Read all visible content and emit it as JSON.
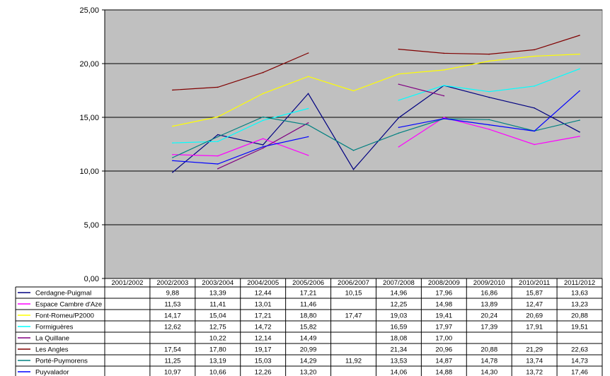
{
  "chart_data": {
    "type": "line",
    "title": "",
    "xlabel": "",
    "ylabel": "",
    "ylim": [
      0,
      25
    ],
    "ytick_labels": [
      "0,00",
      "5,00",
      "10,00",
      "15,00",
      "20,00",
      "25,00"
    ],
    "yticks": [
      0,
      5,
      10,
      15,
      20,
      25
    ],
    "grid": true,
    "legend": "data-table-below",
    "categories": [
      "2001/2002",
      "2002/2003",
      "2003/2004",
      "2004/2005",
      "2005/2006",
      "2006/2007",
      "2007/2008",
      "2008/2009",
      "2009/2010",
      "2010/2011",
      "2011/2012"
    ],
    "series": [
      {
        "name": "Cerdagne-Puigmal",
        "color": "#000080",
        "values": [
          null,
          9.88,
          13.39,
          12.44,
          17.21,
          10.15,
          14.96,
          17.96,
          16.86,
          15.87,
          13.63
        ],
        "labels": [
          "",
          "9,88",
          "13,39",
          "12,44",
          "17,21",
          "10,15",
          "14,96",
          "17,96",
          "16,86",
          "15,87",
          "13,63"
        ]
      },
      {
        "name": "Espace Cambre d'Aze",
        "color": "#ff00ff",
        "values": [
          null,
          11.53,
          11.41,
          13.01,
          11.46,
          null,
          12.25,
          14.98,
          13.89,
          12.47,
          13.23
        ],
        "labels": [
          "",
          "11,53",
          "11,41",
          "13,01",
          "11,46",
          "",
          "12,25",
          "14,98",
          "13,89",
          "12,47",
          "13,23"
        ]
      },
      {
        "name": "Font-Romeu/P2000",
        "color": "#ffff00",
        "values": [
          null,
          14.17,
          15.04,
          17.21,
          18.8,
          17.47,
          19.03,
          19.41,
          20.24,
          20.69,
          20.88
        ],
        "labels": [
          "",
          "14,17",
          "15,04",
          "17,21",
          "18,80",
          "17,47",
          "19,03",
          "19,41",
          "20,24",
          "20,69",
          "20,88"
        ]
      },
      {
        "name": "Formiguères",
        "color": "#00ffff",
        "values": [
          null,
          12.62,
          12.75,
          14.72,
          15.82,
          null,
          16.59,
          17.97,
          17.39,
          17.91,
          19.51
        ],
        "labels": [
          "",
          "12,62",
          "12,75",
          "14,72",
          "15,82",
          "",
          "16,59",
          "17,97",
          "17,39",
          "17,91",
          "19,51"
        ]
      },
      {
        "name": "La Quillane",
        "color": "#800080",
        "values": [
          null,
          null,
          10.22,
          12.14,
          14.49,
          null,
          18.08,
          17.0,
          null,
          null,
          null
        ],
        "labels": [
          "",
          "",
          "10,22",
          "12,14",
          "14,49",
          "",
          "18,08",
          "17,00",
          "",
          "",
          ""
        ]
      },
      {
        "name": "Les Angles",
        "color": "#800000",
        "values": [
          null,
          17.54,
          17.8,
          19.17,
          20.99,
          null,
          21.34,
          20.96,
          20.88,
          21.29,
          22.63
        ],
        "labels": [
          "",
          "17,54",
          "17,80",
          "19,17",
          "20,99",
          "",
          "21,34",
          "20,96",
          "20,88",
          "21,29",
          "22,63"
        ]
      },
      {
        "name": "Porté-Puymorens",
        "color": "#008080",
        "values": [
          null,
          11.25,
          13.19,
          15.03,
          14.29,
          11.92,
          13.53,
          14.87,
          14.78,
          13.74,
          14.73
        ],
        "labels": [
          "",
          "11,25",
          "13,19",
          "15,03",
          "14,29",
          "11,92",
          "13,53",
          "14,87",
          "14,78",
          "13,74",
          "14,73"
        ]
      },
      {
        "name": "Puyvalador",
        "color": "#0000ff",
        "values": [
          null,
          10.97,
          10.66,
          12.26,
          13.2,
          null,
          14.06,
          14.88,
          14.3,
          13.72,
          17.46
        ],
        "labels": [
          "",
          "10,97",
          "10,66",
          "12,26",
          "13,20",
          "",
          "14,06",
          "14,88",
          "14,30",
          "13,72",
          "17,46"
        ]
      }
    ]
  }
}
